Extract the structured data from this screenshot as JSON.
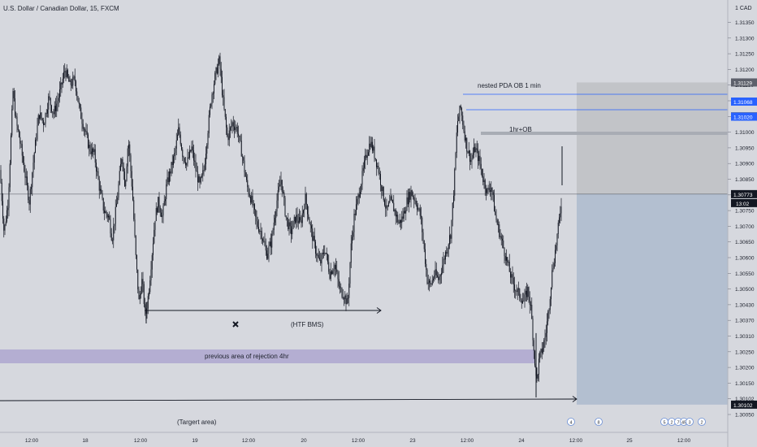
{
  "chart_title": "U.S. Dollar / Canadian Dollar, 15, FXCM",
  "chart_data": {
    "type": "candlestick",
    "title": "U.S. Dollar / Canadian Dollar, 15, FXCM",
    "currency_label": "1 CAD",
    "ylim": [
      1.3003,
      1.314
    ],
    "y_ticks": [
      "1.31350",
      "1.31300",
      "1.31250",
      "1.31200",
      "1.31150",
      "1.31100",
      "1.31050",
      "1.31000",
      "1.30950",
      "1.30900",
      "1.30850",
      "1.30800",
      "1.30750",
      "1.30700",
      "1.30650",
      "1.30600",
      "1.30550",
      "1.30500",
      "1.30430",
      "1.30370",
      "1.30310",
      "1.30250",
      "1.30200",
      "1.30150",
      "1.30102",
      "1.30050"
    ],
    "x_ticks": [
      "12:00",
      "18",
      "12:00",
      "19",
      "12:00",
      "20",
      "12:00",
      "23",
      "12:00",
      "24",
      "12:00",
      "25",
      "12:00"
    ],
    "price_path": [
      [
        0,
        1.3085
      ],
      [
        5,
        1.3065
      ],
      [
        10,
        1.3075
      ],
      [
        16,
        1.311
      ],
      [
        20,
        1.31
      ],
      [
        24,
        1.3095
      ],
      [
        30,
        1.3085
      ],
      [
        36,
        1.3075
      ],
      [
        42,
        1.309
      ],
      [
        48,
        1.3103
      ],
      [
        54,
        1.31
      ],
      [
        60,
        1.3108
      ],
      [
        66,
        1.3103
      ],
      [
        72,
        1.3108
      ],
      [
        80,
        1.3117
      ],
      [
        86,
        1.3112
      ],
      [
        92,
        1.3114
      ],
      [
        98,
        1.3104
      ],
      [
        104,
        1.3098
      ],
      [
        110,
        1.3092
      ],
      [
        116,
        1.309
      ],
      [
        122,
        1.308
      ],
      [
        128,
        1.3072
      ],
      [
        134,
        1.307
      ],
      [
        138,
        1.3063
      ],
      [
        144,
        1.3075
      ],
      [
        150,
        1.309
      ],
      [
        154,
        1.308
      ],
      [
        158,
        1.3095
      ],
      [
        163,
        1.3078
      ],
      [
        167,
        1.3058
      ],
      [
        171,
        1.3043
      ],
      [
        175,
        1.305
      ],
      [
        179,
        1.3038
      ],
      [
        183,
        1.3046
      ],
      [
        187,
        1.3058
      ],
      [
        191,
        1.307
      ],
      [
        195,
        1.3075
      ],
      [
        200,
        1.307
      ],
      [
        205,
        1.308
      ],
      [
        210,
        1.3085
      ],
      [
        215,
        1.309
      ],
      [
        220,
        1.3098
      ],
      [
        225,
        1.309
      ],
      [
        230,
        1.3087
      ],
      [
        236,
        1.3092
      ],
      [
        241,
        1.3085
      ],
      [
        246,
        1.308
      ],
      [
        251,
        1.3085
      ],
      [
        256,
        1.3098
      ],
      [
        260,
        1.3108
      ],
      [
        265,
        1.3115
      ],
      [
        270,
        1.312
      ],
      [
        275,
        1.3106
      ],
      [
        280,
        1.3095
      ],
      [
        286,
        1.31
      ],
      [
        292,
        1.3098
      ],
      [
        298,
        1.309
      ],
      [
        304,
        1.308
      ],
      [
        310,
        1.3075
      ],
      [
        316,
        1.3068
      ],
      [
        322,
        1.3065
      ],
      [
        328,
        1.3058
      ],
      [
        334,
        1.3062
      ],
      [
        340,
        1.3074
      ],
      [
        346,
        1.3082
      ],
      [
        352,
        1.307
      ],
      [
        358,
        1.3065
      ],
      [
        364,
        1.307
      ],
      [
        370,
        1.3068
      ],
      [
        376,
        1.3076
      ],
      [
        382,
        1.3067
      ],
      [
        388,
        1.306
      ],
      [
        394,
        1.3055
      ],
      [
        400,
        1.306
      ],
      [
        406,
        1.3052
      ],
      [
        412,
        1.3055
      ],
      [
        418,
        1.3047
      ],
      [
        424,
        1.3045
      ],
      [
        428,
        1.3042
      ],
      [
        432,
        1.306
      ],
      [
        436,
        1.307
      ],
      [
        440,
        1.3075
      ],
      [
        446,
        1.3083
      ],
      [
        451,
        1.309
      ],
      [
        456,
        1.3094
      ],
      [
        461,
        1.309
      ],
      [
        466,
        1.3085
      ],
      [
        471,
        1.3078
      ],
      [
        476,
        1.3072
      ],
      [
        481,
        1.3075
      ],
      [
        486,
        1.3072
      ],
      [
        491,
        1.3068
      ],
      [
        496,
        1.307
      ],
      [
        501,
        1.3075
      ],
      [
        506,
        1.3078
      ],
      [
        512,
        1.3075
      ],
      [
        518,
        1.307
      ],
      [
        522,
        1.306
      ],
      [
        526,
        1.305
      ],
      [
        530,
        1.3048
      ],
      [
        535,
        1.3052
      ],
      [
        540,
        1.305
      ],
      [
        545,
        1.3055
      ],
      [
        550,
        1.306
      ],
      [
        555,
        1.3065
      ],
      [
        559,
        1.308
      ],
      [
        563,
        1.31
      ],
      [
        567,
        1.3105
      ],
      [
        571,
        1.3098
      ],
      [
        575,
        1.3092
      ],
      [
        580,
        1.3088
      ],
      [
        585,
        1.3092
      ],
      [
        590,
        1.3088
      ],
      [
        595,
        1.3082
      ],
      [
        600,
        1.3078
      ],
      [
        605,
        1.308
      ],
      [
        610,
        1.307
      ],
      [
        615,
        1.3065
      ],
      [
        620,
        1.306
      ],
      [
        625,
        1.3055
      ],
      [
        630,
        1.305
      ],
      [
        635,
        1.3047
      ],
      [
        640,
        1.3045
      ],
      [
        645,
        1.3043
      ],
      [
        650,
        1.3047
      ],
      [
        654,
        1.304
      ],
      [
        658,
        1.3025
      ],
      [
        661,
        1.3018
      ],
      [
        664,
        1.3025
      ],
      [
        668,
        1.3028
      ],
      [
        672,
        1.3033
      ],
      [
        676,
        1.3042
      ],
      [
        680,
        1.3053
      ],
      [
        684,
        1.306
      ],
      [
        688,
        1.3068
      ],
      [
        692,
        1.3077
      ]
    ],
    "position_box": {
      "entry": 1.30773,
      "stop": 1.31129,
      "target": 1.30102,
      "time_start_bar": 710
    },
    "price_labels": [
      {
        "value": "1.31129",
        "price": 1.31129,
        "color": "#5d606b"
      },
      {
        "value": "1.31068",
        "price": 1.31068,
        "color": "#2962ff"
      },
      {
        "value": "1.31021",
        "price": 1.31021,
        "color": "#5d606b"
      },
      {
        "value": "1.31020",
        "price": 1.3102,
        "color": "#2962ff"
      },
      {
        "value": "1.30773",
        "price": 1.30773,
        "color": "#131722"
      },
      {
        "value": "1.30102",
        "price": 1.30102,
        "color": "#131722"
      }
    ],
    "countdown": "13:02",
    "annotations": [
      {
        "text": "nested PDA OB 1 min"
      },
      {
        "text": "1hr+OB"
      },
      {
        "text": "(HTF BMS)"
      },
      {
        "text": "previous area of rejection 4hr"
      },
      {
        "text": "(Targert area)"
      }
    ],
    "event_badges": [
      "4",
      "8",
      "5",
      "2",
      "7",
      "45",
      "3",
      "2"
    ],
    "colors": {
      "background": "#d6d8de",
      "candle": "#131722",
      "position_stop": "#c2c4c8",
      "position_target": "#b3bfd0",
      "rejection_zone": "#b4aed2",
      "level_line": "#2962ff",
      "ob_zone": "#a8acb4"
    }
  }
}
